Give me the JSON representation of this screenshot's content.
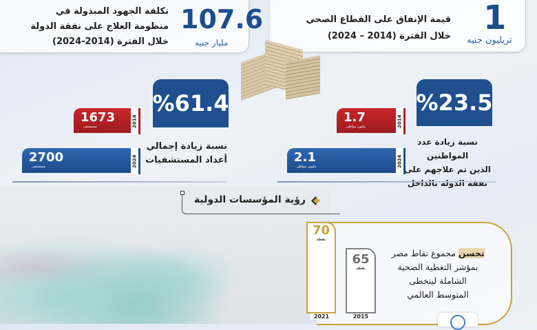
{
  "top_left": {
    "value": "107.6",
    "unit": "مليار جنيه",
    "lines": [
      "تكلفة الجهود المبذولة في",
      "منظومة العلاج على نفقة الدولة",
      "خلال الفترة (2014-2024)"
    ]
  },
  "top_right": {
    "value": "1",
    "unit": "تريليون جنيه",
    "lines": [
      "قيمة الإنفاق على القطاع الصحي",
      "خلال الفترة (2014 – 2024)"
    ]
  },
  "hospitals": {
    "percent": "%61.4",
    "lines": [
      "نسبة زيادة إجمالي",
      "أعداد المستشفيات"
    ],
    "bars": [
      {
        "year": "2014",
        "value": "1673",
        "unit": "مستشفى",
        "color": "#b02024"
      },
      {
        "year": "2024",
        "value": "2700",
        "unit": "مستشفى",
        "color": "#1f4f8f"
      }
    ]
  },
  "citizens": {
    "percent": "%23.5",
    "lines": [
      "نسبة زيادة عدد المواطنين",
      "الذين تم علاجهم على",
      "نفقة الدولة بالداخل"
    ],
    "bars": [
      {
        "year": "2014",
        "value": "1.7",
        "unit": "مليون مواطن",
        "color": "#b02024"
      },
      {
        "year": "2024",
        "value": "2.1",
        "unit": "مليون مواطن",
        "color": "#1f4f8f"
      }
    ]
  },
  "section_title": "رؤية المؤسسات الدولية",
  "uhc": {
    "highlight": "تحسن",
    "lines": [
      "مجموع نقاط مصر",
      "بمؤشر التغطية الصحية",
      "الشاملة ليتخطى",
      "المتوسط العالمي"
    ],
    "columns": [
      {
        "year": "2021",
        "value": "70",
        "unit": "نقطة",
        "color": "#c9a43a"
      },
      {
        "year": "2015",
        "value": "65",
        "unit": "نقطة",
        "color": "#808080"
      }
    ]
  },
  "colors": {
    "primary": "#1f4f8f",
    "red": "#b02024",
    "gold": "#c9a43a"
  }
}
